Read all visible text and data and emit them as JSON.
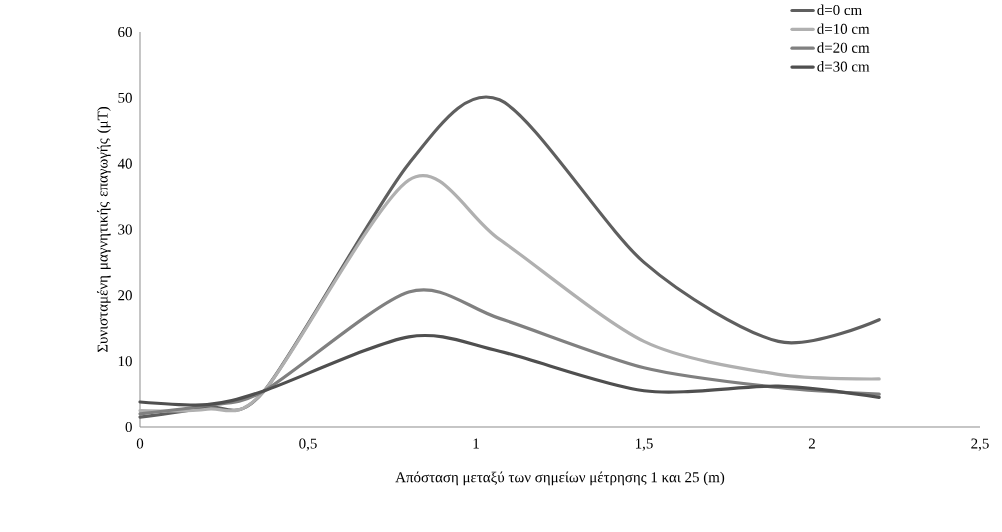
{
  "chart_data": {
    "type": "line",
    "xlabel": "Απόσταση μεταξύ των σημείων μέτρησης 1 και 25 (m)",
    "ylabel": "Συνισταμένη μαγνητικής επαγωγής (μT)",
    "x": [
      0,
      0.2,
      0.37,
      0.8,
      1.07,
      1.5,
      1.9,
      2.2
    ],
    "series": [
      {
        "name": "d=0 cm",
        "color": "#5f5f5f",
        "values": [
          1.5,
          3,
          5.5,
          40,
          49.7,
          25,
          13,
          16.3
        ]
      },
      {
        "name": "d=10 cm",
        "color": "#b0b0b0",
        "values": [
          2.5,
          2.7,
          5.5,
          37.5,
          28.5,
          13,
          8,
          7.3
        ]
      },
      {
        "name": "d=20 cm",
        "color": "#808080",
        "values": [
          2,
          3.3,
          5.5,
          20.5,
          16.5,
          9,
          6,
          5
        ]
      },
      {
        "name": "d=30 cm",
        "color": "#4f4f4f",
        "values": [
          3.8,
          3.4,
          5.5,
          13.7,
          11.5,
          5.5,
          6.2,
          4.5
        ]
      }
    ],
    "xlim": [
      0,
      2.5
    ],
    "xticks": [
      0,
      {
        "value": 0.5,
        "label": "0,5"
      },
      1,
      {
        "value": 1.5,
        "label": "1,5"
      },
      2,
      {
        "value": 2.5,
        "label": "2,5"
      }
    ],
    "ylim": [
      0,
      60
    ],
    "yticks": [
      0,
      10,
      20,
      30,
      40,
      50,
      60
    ],
    "grid": false,
    "legend": "top right",
    "marker": "none",
    "line_style": "solid"
  }
}
